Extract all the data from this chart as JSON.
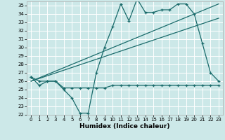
{
  "xlabel": "Humidex (Indice chaleur)",
  "bg_color": "#cce8e8",
  "grid_color": "#ffffff",
  "line_color": "#1a6b6b",
  "xlim": [
    -0.5,
    23.5
  ],
  "ylim": [
    22,
    35.5
  ],
  "xticks": [
    0,
    1,
    2,
    3,
    4,
    5,
    6,
    7,
    8,
    9,
    10,
    11,
    12,
    13,
    14,
    15,
    16,
    17,
    18,
    19,
    20,
    21,
    22,
    23
  ],
  "yticks": [
    22,
    23,
    24,
    25,
    26,
    27,
    28,
    29,
    30,
    31,
    32,
    33,
    34,
    35
  ],
  "series1": [
    26.5,
    26,
    26,
    26,
    25,
    24,
    22.2,
    22.2,
    27,
    30,
    32.5,
    35.2,
    33.2,
    35.8,
    34.2,
    34.2,
    34.5,
    34.5,
    35.2,
    35.2,
    34.0,
    30.5,
    27.0,
    26.0
  ],
  "series2": [
    26.5,
    25.5,
    26,
    26,
    25.2,
    25.2,
    25.2,
    25.2,
    25.2,
    25.2,
    25.5,
    25.5,
    25.5,
    25.5,
    25.5,
    25.5,
    25.5,
    25.5,
    25.5,
    25.5,
    25.5,
    25.5,
    25.5,
    25.5
  ],
  "trend1_x": [
    0,
    23
  ],
  "trend1_y": [
    26.0,
    33.5
  ],
  "trend2_x": [
    0,
    23
  ],
  "trend2_y": [
    26.0,
    35.2
  ]
}
